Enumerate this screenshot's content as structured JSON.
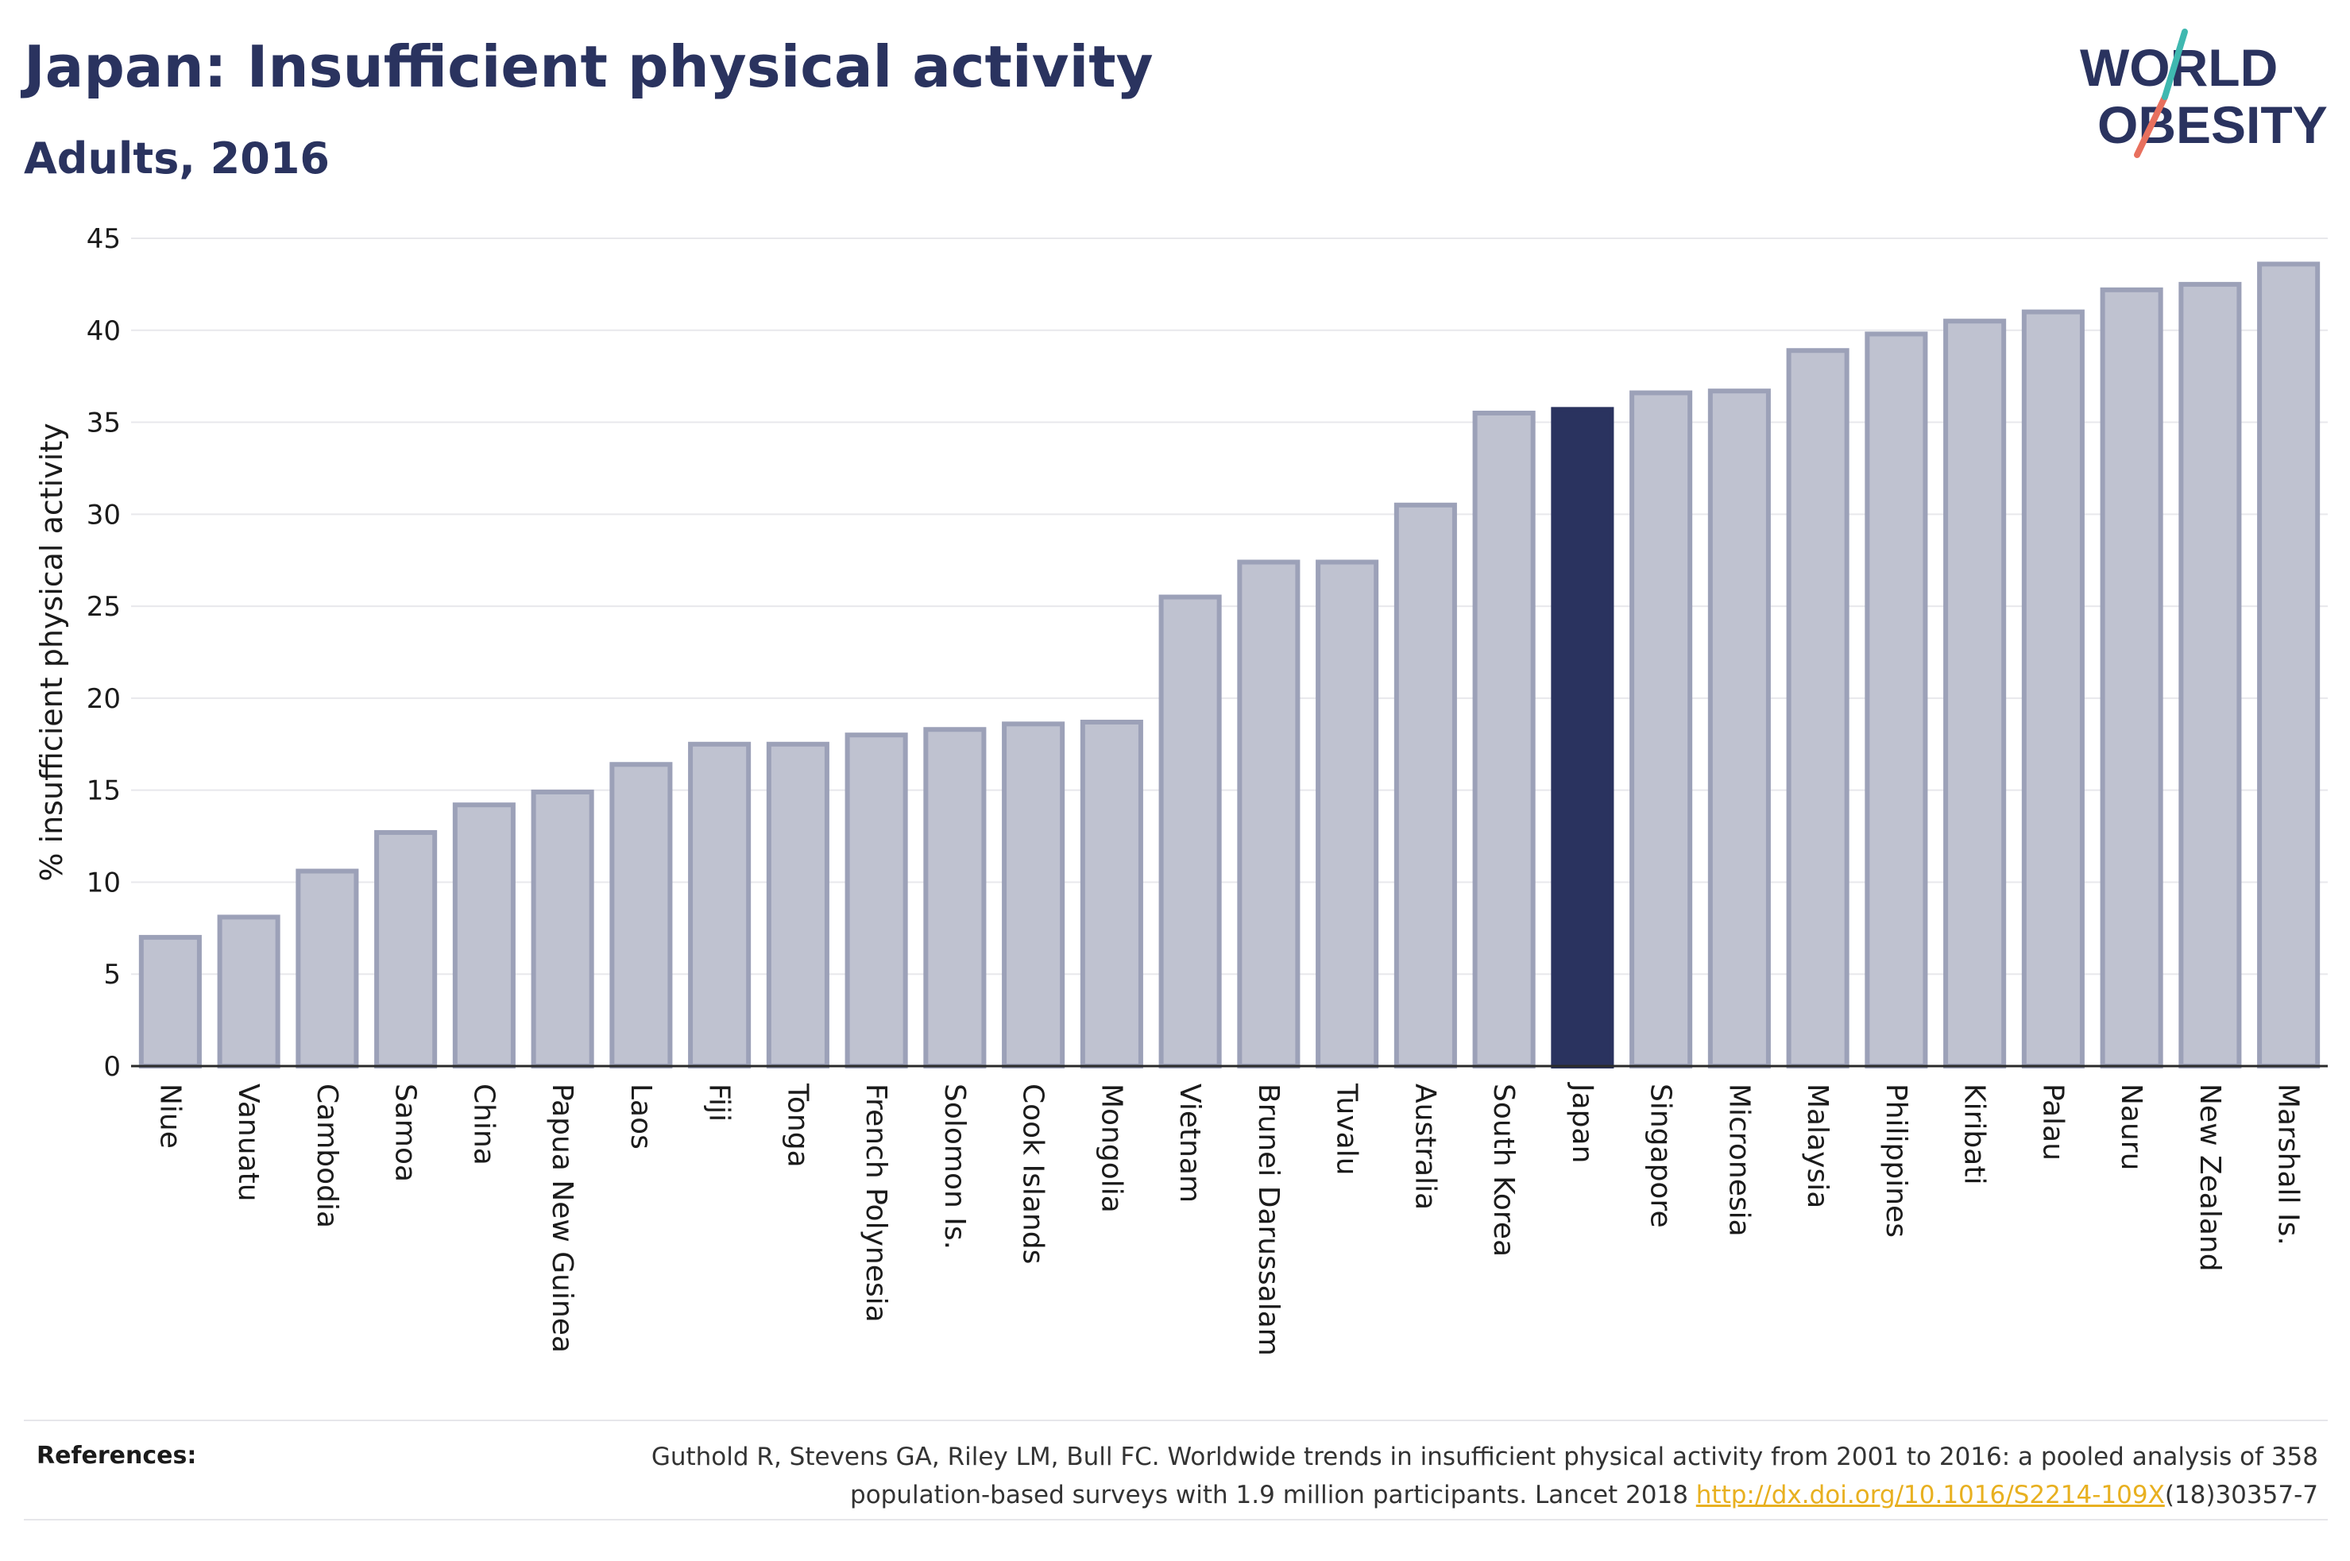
{
  "title": "Japan: Insufficient physical activity",
  "subtitle": "Adults, 2016",
  "logo": {
    "line1": "WORLD",
    "line2": "OBESITY"
  },
  "chart_data": {
    "type": "bar",
    "ylabel": "% insufficient physical activity",
    "ylim": [
      0,
      45
    ],
    "yticks": [
      0,
      5,
      10,
      15,
      20,
      25,
      30,
      35,
      40,
      45
    ],
    "grid": true,
    "highlight": "Japan",
    "colors": {
      "bar": "#bfc2d0",
      "bar_edge": "#9ca1b8",
      "highlight": "#2a335f"
    },
    "categories": [
      "Niue",
      "Vanuatu",
      "Cambodia",
      "Samoa",
      "China",
      "Papua New Guinea",
      "Laos",
      "Fiji",
      "Tonga",
      "French Polynesia",
      "Solomon Is.",
      "Cook Islands",
      "Mongolia",
      "Vietnam",
      "Brunei Darussalam",
      "Tuvalu",
      "Australia",
      "South Korea",
      "Japan",
      "Singapore",
      "Micronesia",
      "Malaysia",
      "Philippines",
      "Kiribati",
      "Palau",
      "Nauru",
      "New Zealand",
      "Marshall Is."
    ],
    "values": [
      7.0,
      8.1,
      10.6,
      12.7,
      14.2,
      14.9,
      16.4,
      17.5,
      17.5,
      18.0,
      18.3,
      18.6,
      18.7,
      25.5,
      27.4,
      27.4,
      30.5,
      35.5,
      35.7,
      36.6,
      36.7,
      38.9,
      39.8,
      40.5,
      41.0,
      42.2,
      42.5,
      43.6
    ]
  },
  "references": {
    "label": "References:",
    "line1": "Guthold R, Stevens GA, Riley LM, Bull FC. Worldwide trends in insufficient physical activity from 2001 to 2016: a pooled analysis of 358",
    "line2_prefix": "population-based surveys with 1.9 million participants. Lancet 2018 ",
    "link": "http://dx.doi.org/10.1016/S2214-109X",
    "line2_suffix": "(18)30357-7"
  }
}
